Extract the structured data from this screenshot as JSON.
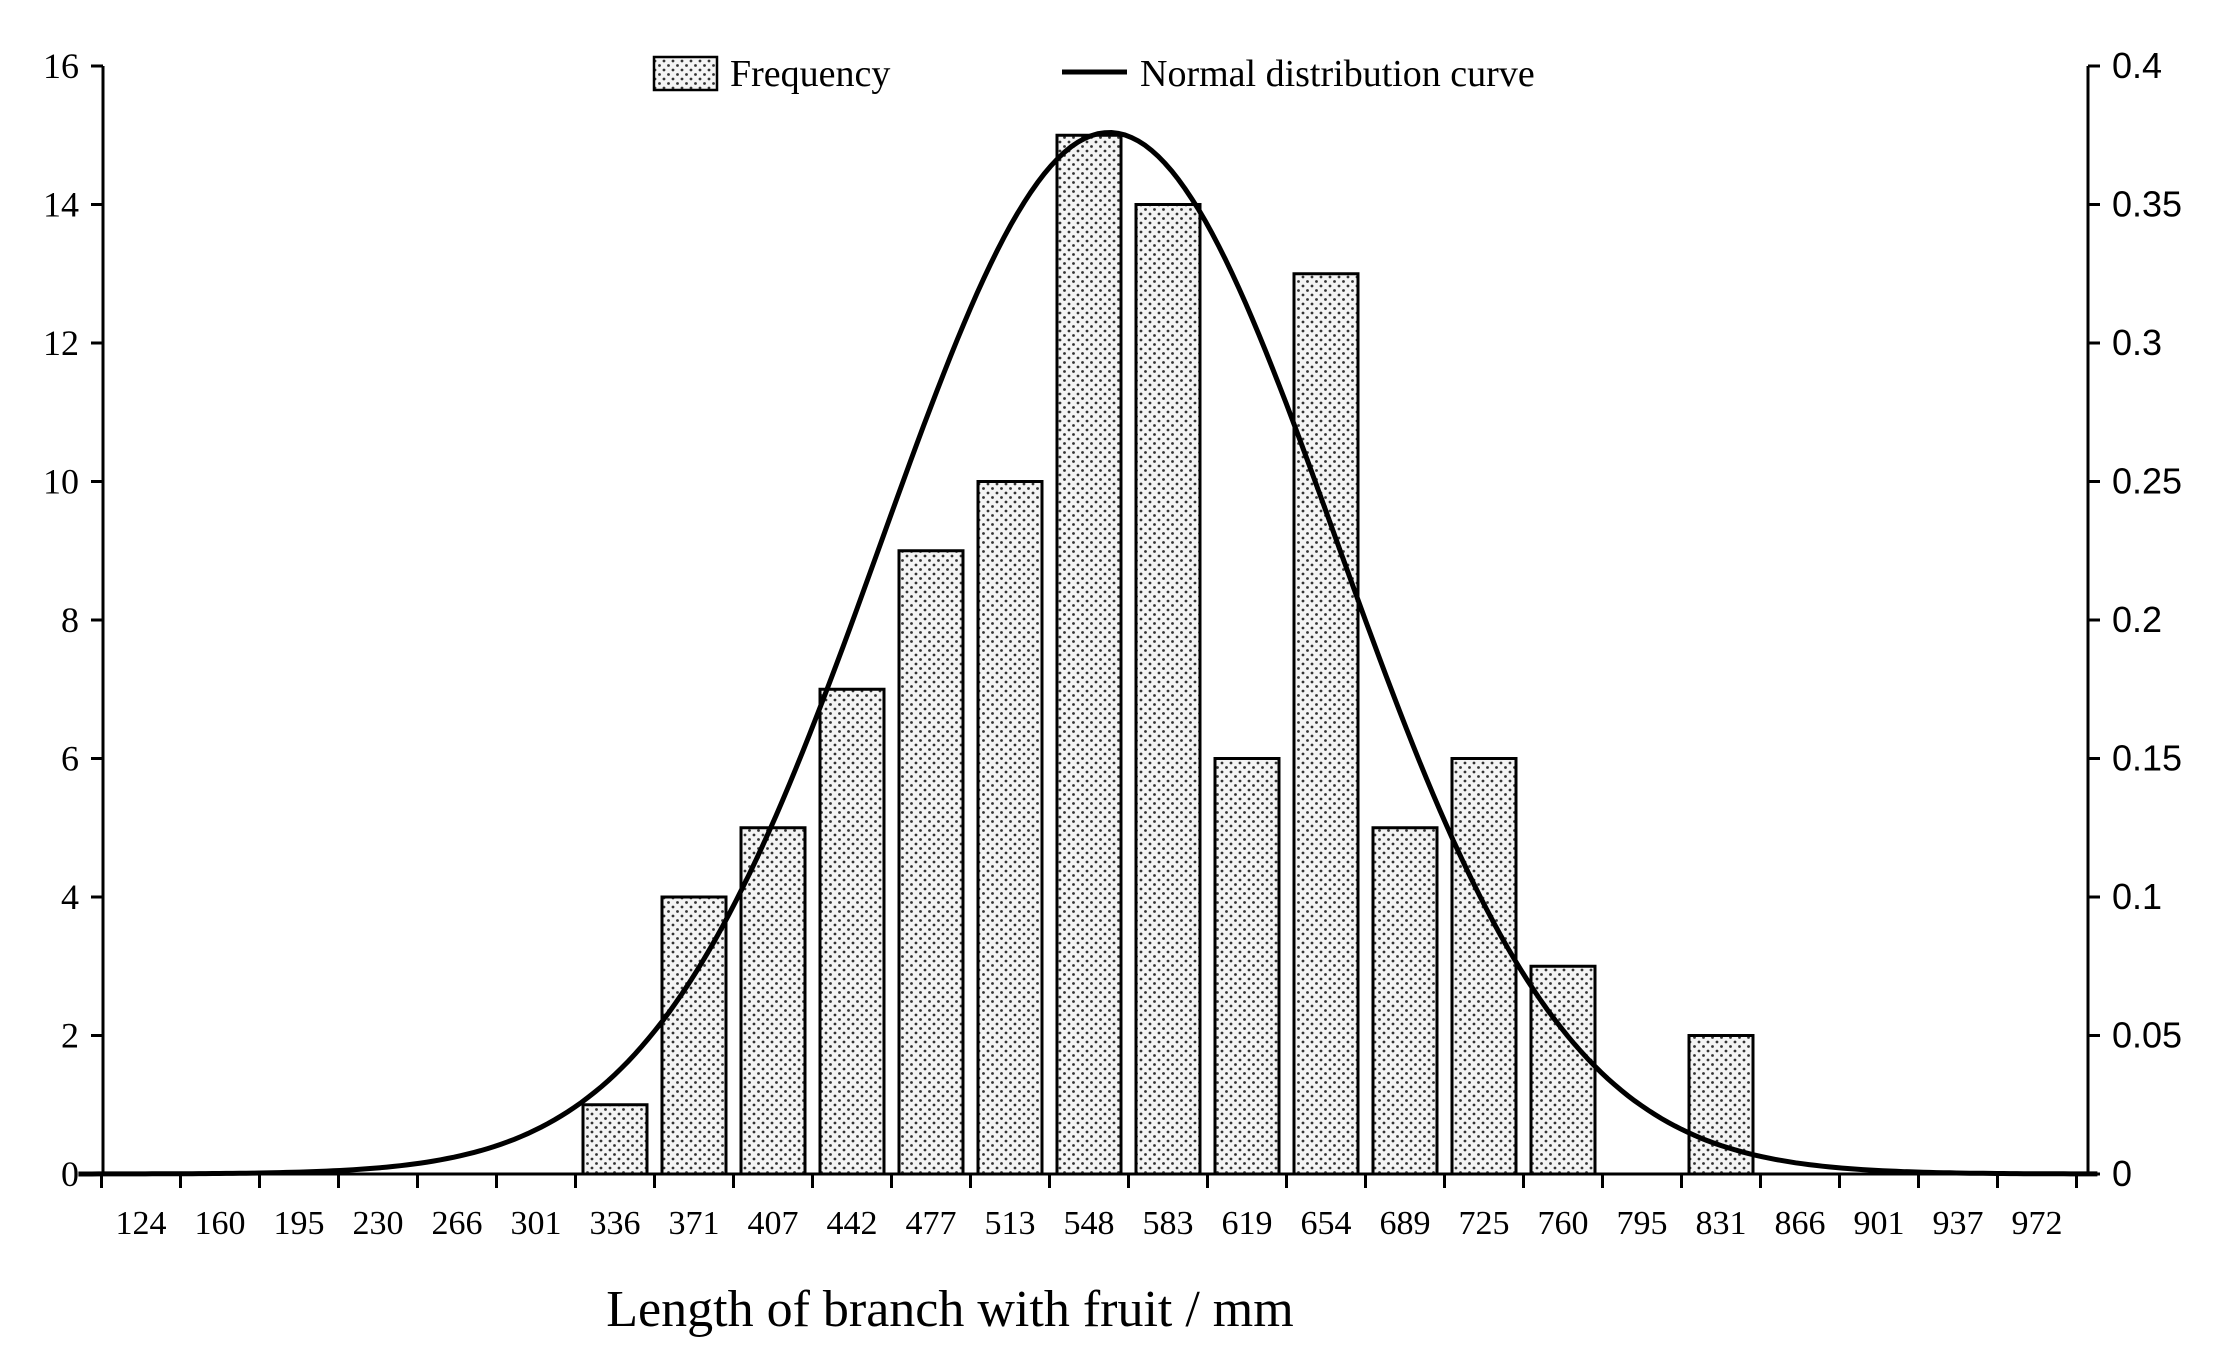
{
  "chart_data": {
    "type": "bar",
    "title": "",
    "xlabel": "Length of branch with fruit / mm",
    "ylabel": "",
    "y2label": "",
    "categories": [
      "124",
      "160",
      "195",
      "230",
      "266",
      "301",
      "336",
      "371",
      "407",
      "442",
      "477",
      "513",
      "548",
      "583",
      "619",
      "654",
      "689",
      "725",
      "760",
      "795",
      "831",
      "866",
      "901",
      "937",
      "972"
    ],
    "ylim": [
      0,
      16
    ],
    "y2lim": [
      0,
      0.4
    ],
    "yticks": [
      "0",
      "2",
      "4",
      "6",
      "8",
      "10",
      "12",
      "14",
      "16"
    ],
    "y2ticks": [
      "0",
      "0.05",
      "0.1",
      "0.15",
      "0.2",
      "0.25",
      "0.3",
      "0.35",
      "0.4"
    ],
    "series": [
      {
        "name": "Frequency",
        "type": "bar",
        "axis": "left",
        "values": [
          0,
          0,
          0,
          0,
          0,
          0,
          1,
          4,
          5,
          7,
          9,
          10,
          15,
          14,
          6,
          13,
          5,
          6,
          3,
          0,
          2,
          0,
          0,
          0,
          0
        ]
      },
      {
        "name": "Normal distribution curve",
        "type": "line",
        "axis": "right",
        "mean": 557,
        "sd": 102,
        "peak": 0.376,
        "x_range": [
          96,
          1000
        ]
      }
    ],
    "legend": [
      "Frequency",
      "Normal distribution curve"
    ],
    "grid": false
  }
}
